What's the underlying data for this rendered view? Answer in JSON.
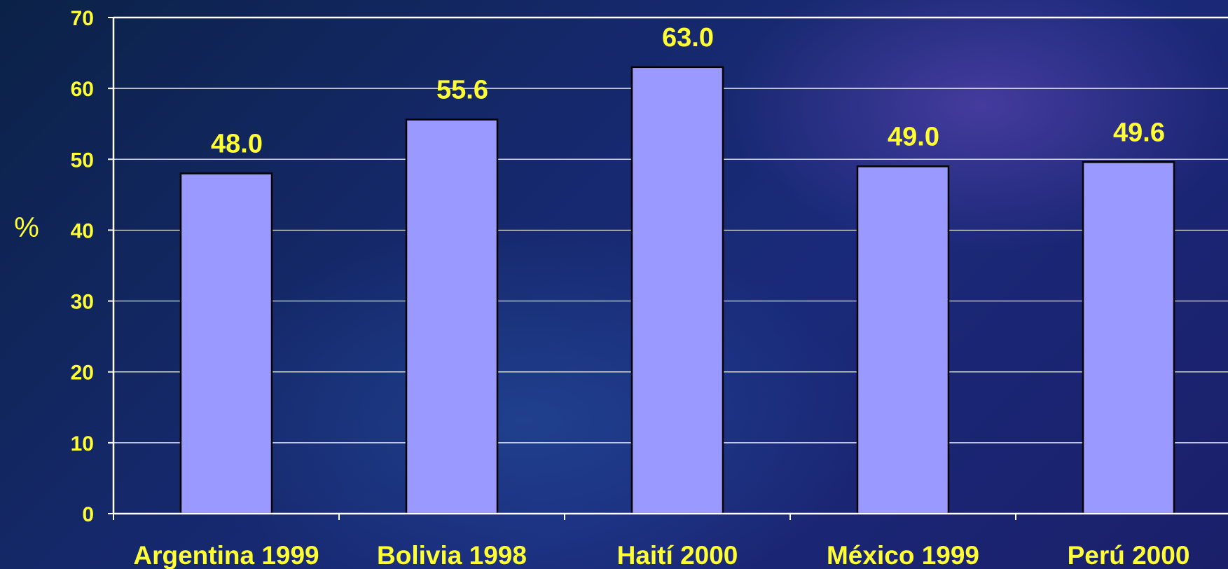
{
  "chart_data": {
    "type": "bar",
    "categories": [
      "Argentina 1999",
      "Bolivia 1998",
      "Haití 2000",
      "México 1999",
      "Perú 2000"
    ],
    "values": [
      48.0,
      55.6,
      63.0,
      49.0,
      49.6
    ],
    "data_labels": [
      "48.0",
      "55.6",
      "63.0",
      "49.0",
      "49.6"
    ],
    "title": "",
    "xlabel": "",
    "ylabel": "%",
    "ylim": [
      0,
      70
    ],
    "yticks": [
      0,
      10,
      20,
      30,
      40,
      50,
      60,
      70
    ],
    "grid": true,
    "bar_color": "#9999ff",
    "label_color": "#ffff33"
  }
}
